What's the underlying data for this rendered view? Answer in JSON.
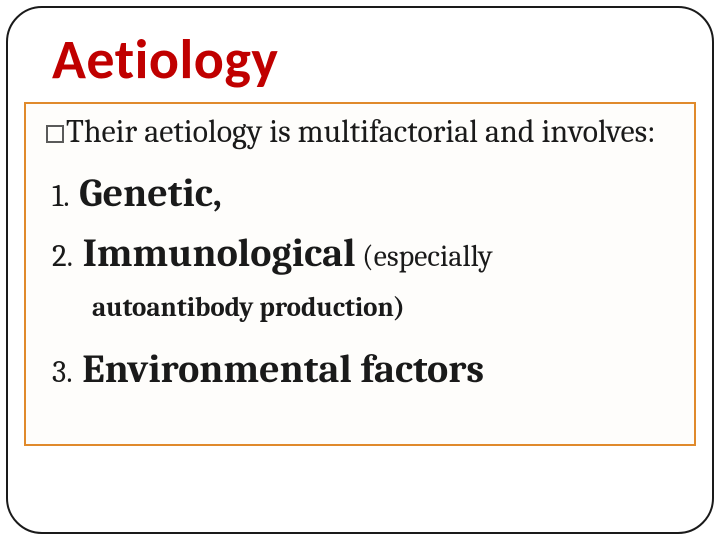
{
  "title": "Aetiology",
  "intro": "Their aetiology is multifactorial and involves:",
  "items": {
    "n1": "1.",
    "t1": "Genetic,",
    "n2": "2.",
    "t2": "Immunological",
    "paren": " (especially",
    "sub": "autoantibody production)",
    "n3": "3.",
    "t3": "Environmental factors"
  },
  "colors": {
    "title": "#c00000",
    "frame": "#1a1a1a",
    "box_border": "#e08a2c",
    "text": "#1a1a1a"
  }
}
